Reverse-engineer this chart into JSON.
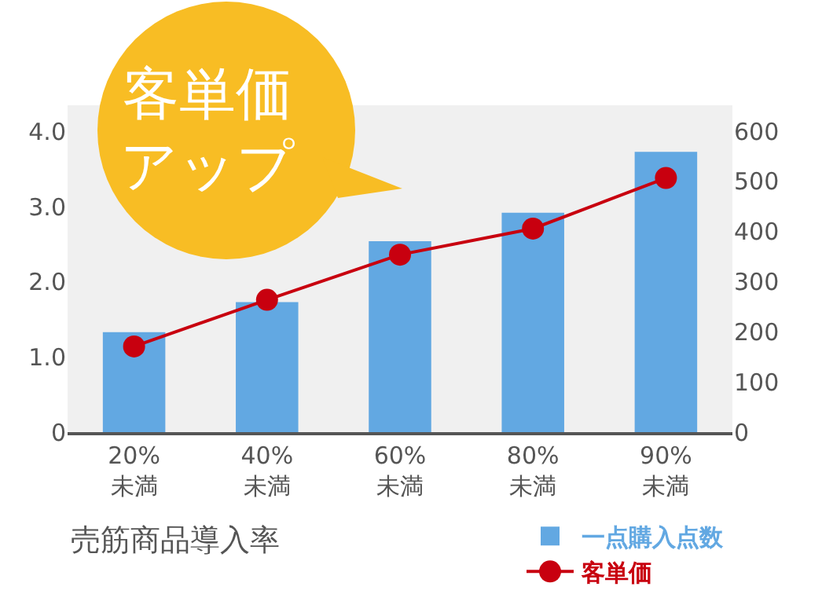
{
  "chart_data": {
    "type": "bar",
    "xlabel": "売筋商品導入率",
    "categories": [
      "20%\n未満",
      "40%\n未満",
      "60%\n未満",
      "80%\n未満",
      "90%\n未満"
    ],
    "series": [
      {
        "name": "一点購入点数",
        "color": "#62a8e2",
        "values": [
          1.33,
          1.73,
          2.54,
          2.92,
          3.73
        ]
      },
      {
        "name": "客単価",
        "type": "line",
        "axis": "y2",
        "color": "#c8000f",
        "marker": "circle",
        "values": [
          171,
          264,
          354,
          406,
          507
        ]
      }
    ],
    "ylim": [
      0,
      4.35
    ],
    "yticks": [
      0,
      {
        "value": 1,
        "label": "1.0"
      },
      {
        "value": 2,
        "label": "2.0"
      },
      {
        "value": 3,
        "label": "3.0"
      },
      {
        "value": 4,
        "label": "4.0"
      }
    ],
    "y2lim": [
      0,
      652
    ],
    "y2ticks": [
      0,
      100,
      200,
      300,
      400,
      500,
      600
    ],
    "annotations": [
      "客単価アップ"
    ],
    "grid": false,
    "legend": "bottom right"
  }
}
